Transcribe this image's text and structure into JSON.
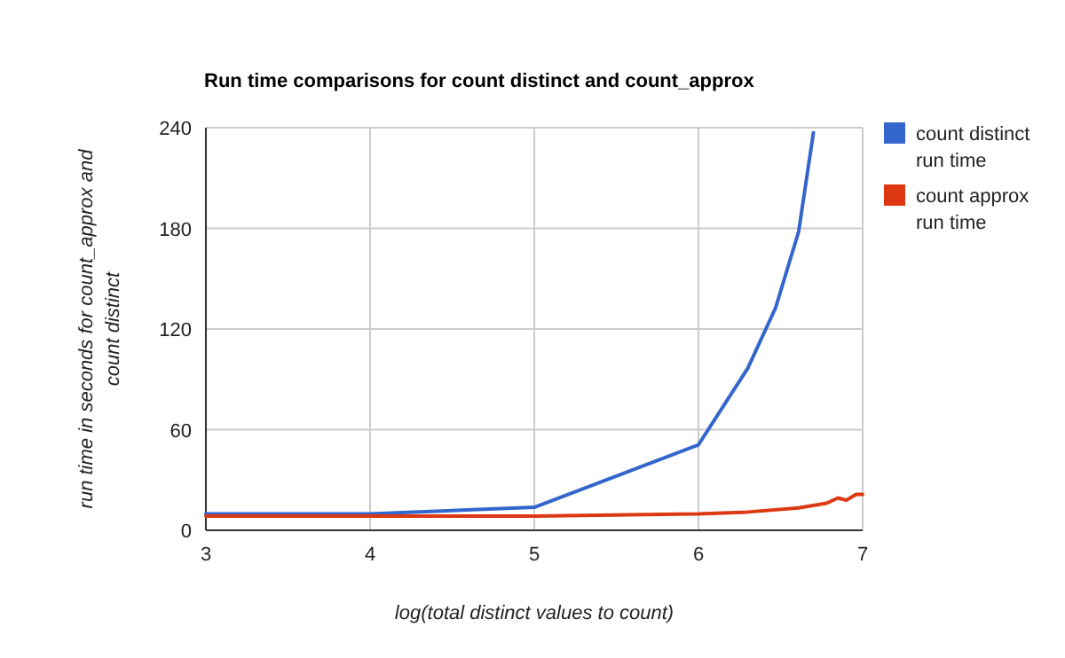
{
  "chart_data": {
    "type": "line",
    "title": "Run time comparisons for count distinct and count_approx",
    "xlabel": "log(total distinct values to count)",
    "ylabel": "run time in seconds for count_approx and count distinct",
    "xlim": [
      3,
      7
    ],
    "xticks": [
      3,
      4,
      5,
      6,
      7
    ],
    "ylim": [
      0,
      240
    ],
    "yticks": [
      0,
      60,
      120,
      180,
      240
    ],
    "grid": true,
    "legend": "right",
    "series": [
      {
        "name": "count distinct run time",
        "color": "#3366cc",
        "x": [
          3,
          4,
          5,
          6,
          6.3,
          6.47,
          6.61,
          6.7
        ],
        "values": [
          9.8,
          9.8,
          13.7,
          51,
          96.5,
          132.7,
          178,
          237
        ]
      },
      {
        "name": "count approx run time",
        "color": "#dc3912",
        "x": [
          3,
          5,
          6,
          6.3,
          6.61,
          6.78,
          6.85,
          6.9,
          6.96,
          7
        ],
        "values": [
          8.4,
          8.4,
          9.8,
          10.9,
          13.3,
          16.1,
          19.3,
          17.9,
          21.4,
          21.4
        ]
      }
    ]
  }
}
